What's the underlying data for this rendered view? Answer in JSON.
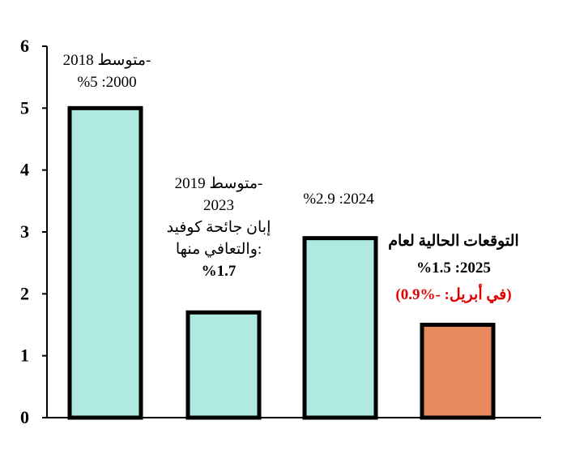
{
  "chart_data": {
    "type": "bar",
    "categories": [
      "متوسط 2018-2000",
      "متوسط 2019-2023",
      "2024",
      "2025"
    ],
    "values": [
      5.0,
      1.7,
      2.9,
      1.5
    ],
    "ylim": [
      0,
      6
    ],
    "yticks": [
      "0",
      "1",
      "2",
      "3",
      "4",
      "5",
      "6"
    ],
    "grid": false,
    "colors": [
      "#aeeadf",
      "#aeeadf",
      "#aeeadf",
      "#e8895d"
    ],
    "annotations": [
      {
        "lines": [
          {
            "text": "متوسط 2018-",
            "style": "normal"
          },
          {
            "text": "%5 :2000",
            "style": "normal"
          }
        ]
      },
      {
        "lines": [
          {
            "text": "متوسط 2019-",
            "style": "normal"
          },
          {
            "text": "2023",
            "style": "normal"
          },
          {
            "text": "إبان جائحة كوفيد",
            "style": "normal"
          },
          {
            "text": "والتعافي منها:",
            "style": "normal"
          },
          {
            "text": "%1.7",
            "style": "bold"
          }
        ]
      },
      {
        "lines": [
          {
            "text": "%2.9 :2024",
            "style": "normal"
          }
        ]
      },
      {
        "lines": [
          {
            "text": "التوقعات الحالية لعام",
            "style": "bold"
          },
          {
            "text": "%1.5 :2025",
            "style": "bold"
          },
          {
            "text": "(في أبريل: -%0.9)",
            "style": "red"
          }
        ]
      }
    ]
  }
}
